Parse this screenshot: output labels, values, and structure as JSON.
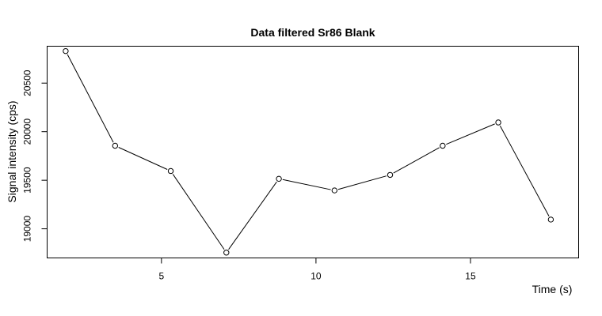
{
  "chart_data": {
    "type": "line",
    "title": "Data filtered Sr86 Blank",
    "xlabel": "Time (s)",
    "ylabel": "Signal intensity (cps)",
    "xlim": [
      1.3,
      18.5
    ],
    "ylim": [
      18700,
      20880
    ],
    "x_ticks": [
      5,
      10,
      15
    ],
    "y_ticks": [
      19000,
      19500,
      20000,
      20500
    ],
    "x_tick_labels": [
      "5",
      "10",
      "15"
    ],
    "y_tick_labels": [
      "19000",
      "19500",
      "20000",
      "20500"
    ],
    "grid": false,
    "point_style": "open-circle",
    "x": [
      1.9,
      3.5,
      5.3,
      7.1,
      8.8,
      10.6,
      12.4,
      14.1,
      15.9,
      17.6
    ],
    "y": [
      20830,
      19855,
      19595,
      18755,
      19515,
      19395,
      19555,
      19855,
      20095,
      19095
    ]
  }
}
